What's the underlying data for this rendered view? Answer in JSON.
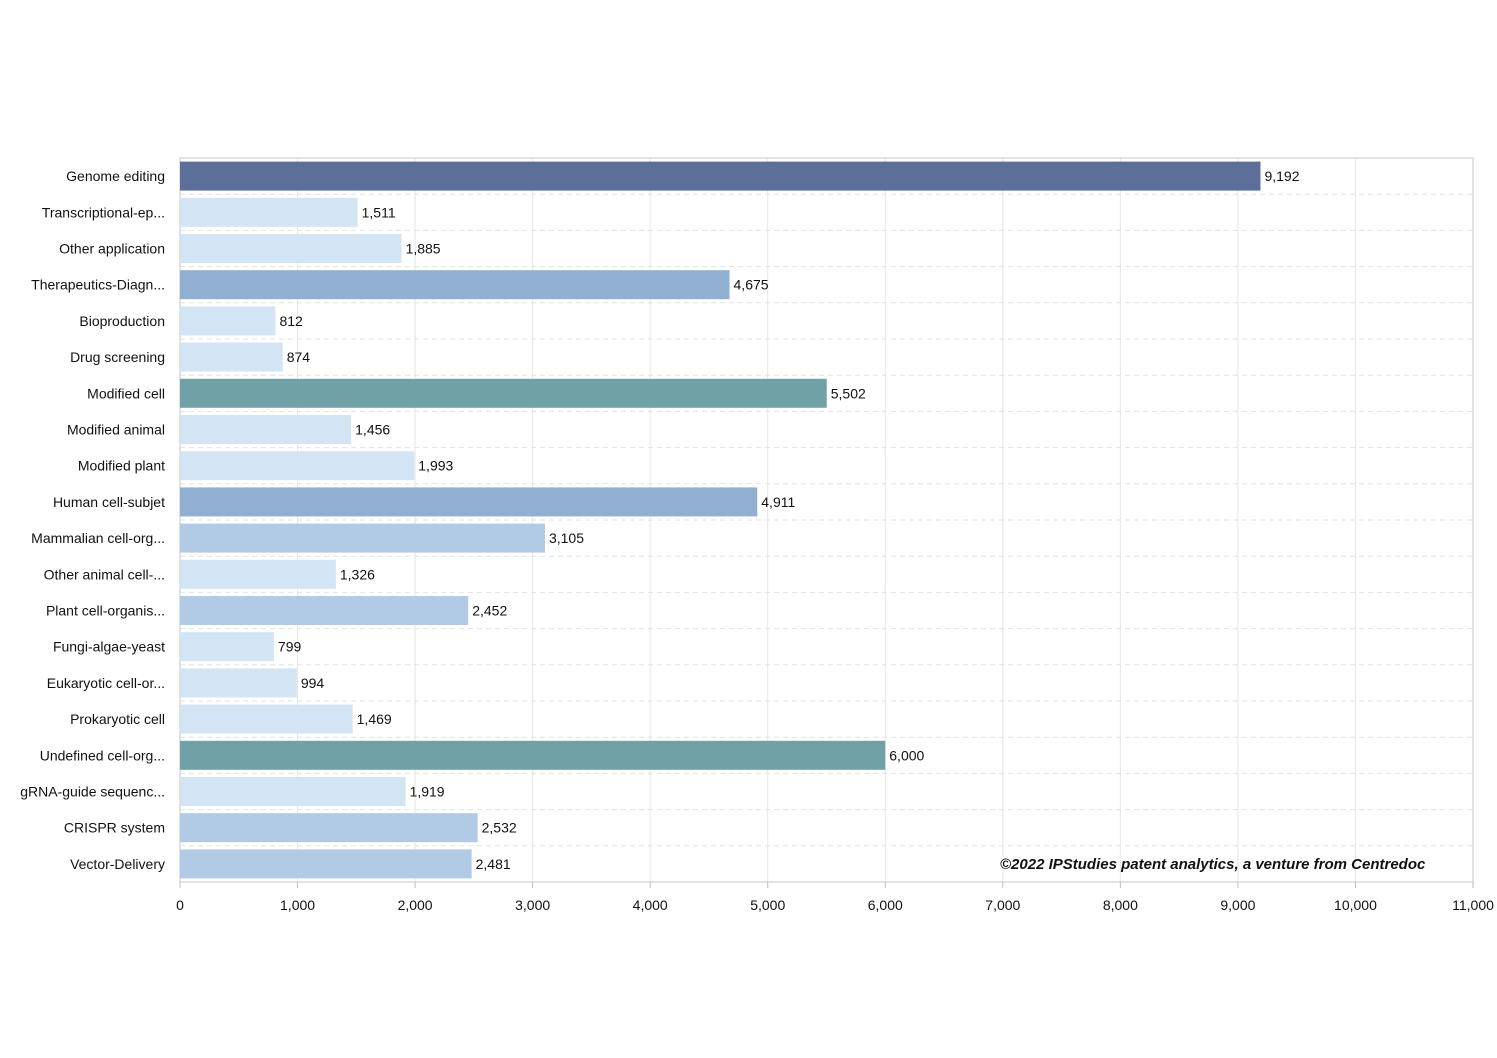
{
  "chart_data": {
    "type": "bar",
    "orientation": "horizontal",
    "title": "",
    "xlabel": "",
    "ylabel": "",
    "xlim": [
      0,
      11000
    ],
    "x_ticks": [
      0,
      1000,
      2000,
      3000,
      4000,
      5000,
      6000,
      7000,
      8000,
      9000,
      10000,
      11000
    ],
    "x_tick_labels": [
      "0",
      "1,000",
      "2,000",
      "3,000",
      "4,000",
      "5,000",
      "6,000",
      "7,000",
      "8,000",
      "9,000",
      "10,000",
      "11,000"
    ],
    "grid": true,
    "categories": [
      "Genome editing",
      "Transcriptional-ep...",
      "Other application",
      "Therapeutics-Diagn...",
      "Bioproduction",
      "Drug screening",
      "Modified cell",
      "Modified animal",
      "Modified plant",
      "Human cell-subjet",
      "Mammalian cell-org...",
      "Other animal cell-...",
      "Plant cell-organis...",
      "Fungi-algae-yeast",
      "Eukaryotic cell-or...",
      "Prokaryotic cell",
      "Undefined cell-org...",
      "gRNA-guide sequenc...",
      "CRISPR system",
      "Vector-Delivery"
    ],
    "values": [
      9192,
      1511,
      1885,
      4675,
      812,
      874,
      5502,
      1456,
      1993,
      4911,
      3105,
      1326,
      2452,
      799,
      994,
      1469,
      6000,
      1919,
      2532,
      2481
    ],
    "value_labels": [
      "9,192",
      "1,511",
      "1,885",
      "4,675",
      "812",
      "874",
      "5,502",
      "1,456",
      "1,993",
      "4,911",
      "3,105",
      "1,326",
      "2,452",
      "799",
      "994",
      "1,469",
      "6,000",
      "1,919",
      "2,532",
      "2,481"
    ],
    "bar_colors": [
      "#5b6f98",
      "#d3e4f5",
      "#d3e4f5",
      "#91afd0",
      "#d3e4f5",
      "#d3e4f5",
      "#70a1a7",
      "#d3e4f5",
      "#d3e4f5",
      "#91afd0",
      "#b1cae6",
      "#d3e4f5",
      "#b1cae6",
      "#d3e4f5",
      "#d3e4f5",
      "#d3e4f5",
      "#70a1a7",
      "#d3e4f5",
      "#b1cae6",
      "#b1cae6"
    ],
    "annotation": "©2022 IPStudies patent analytics, a venture from Centredoc"
  }
}
